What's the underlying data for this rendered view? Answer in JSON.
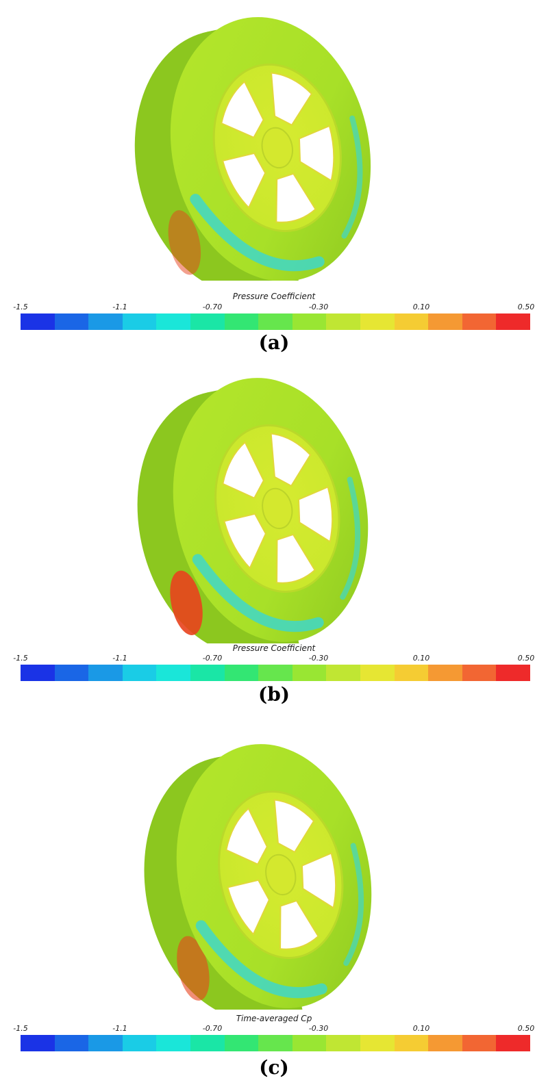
{
  "panels": [
    {
      "label": "(a)",
      "legend_title": "Pressure Coefficient",
      "tick_labels": [
        "-1.5",
        "-1.1",
        "-0.70",
        "-0.30",
        "0.10",
        "0.50"
      ]
    },
    {
      "label": "(b)",
      "legend_title": "Pressure Coefficient",
      "tick_labels": [
        "-1.5",
        "-1.1",
        "-0.70",
        "-0.30",
        "0.10",
        "0.50"
      ]
    },
    {
      "label": "(c)",
      "legend_title": "Time-averaged Cp",
      "tick_labels": [
        "-1.5",
        "-1.1",
        "-0.70",
        "-0.30",
        "0.10",
        "0.50"
      ]
    }
  ],
  "colormap": [
    "#1a33e6",
    "#1a66e6",
    "#1a99e6",
    "#1acce6",
    "#1ae6d9",
    "#1ae6a6",
    "#33e673",
    "#66e64d",
    "#99e633",
    "#c0e633",
    "#e6e633",
    "#f5cc33",
    "#f59933",
    "#f26633",
    "#ee2a2a"
  ],
  "colors": {
    "tire": "#a8e028",
    "tire_dark": "#8cc71f",
    "rim": "#c9e82c",
    "rim_dark": "#e0d83a",
    "cool": "#3fd7c8",
    "hot": "#e8421d"
  }
}
